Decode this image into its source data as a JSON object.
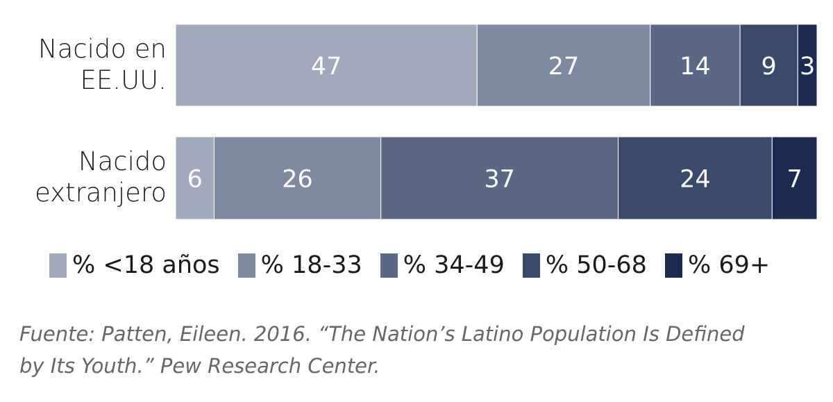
{
  "chart_data": {
    "type": "bar",
    "orientation": "horizontal",
    "stacked": true,
    "categories": [
      "Nacido en EE.UU.",
      "Nacido extranjero"
    ],
    "category_lines": [
      [
        "Nacido en",
        "EE.UU."
      ],
      [
        "Nacido",
        "extranjero"
      ]
    ],
    "series": [
      {
        "name": "% <18 años",
        "values": [
          47,
          6
        ],
        "color": "#a2a9bb"
      },
      {
        "name": "% 18-33",
        "values": [
          27,
          26
        ],
        "color": "#7f8aa2"
      },
      {
        "name": "% 34-49",
        "values": [
          14,
          37
        ],
        "color": "#5a6885"
      },
      {
        "name": "% 50-68",
        "values": [
          9,
          24
        ],
        "color": "#3a4a6b"
      },
      {
        "name": "% 69+",
        "values": [
          3,
          7
        ],
        "color": "#1b2b52"
      }
    ],
    "xlim": [
      0,
      100
    ],
    "grid": false,
    "legend_placement": "bottom",
    "data_labels": true
  },
  "source": [
    "Fuente: Patten, Eileen. 2016. “The Nation’s Latino Population Is Defined",
    "by Its Youth.” Pew Research Center."
  ]
}
